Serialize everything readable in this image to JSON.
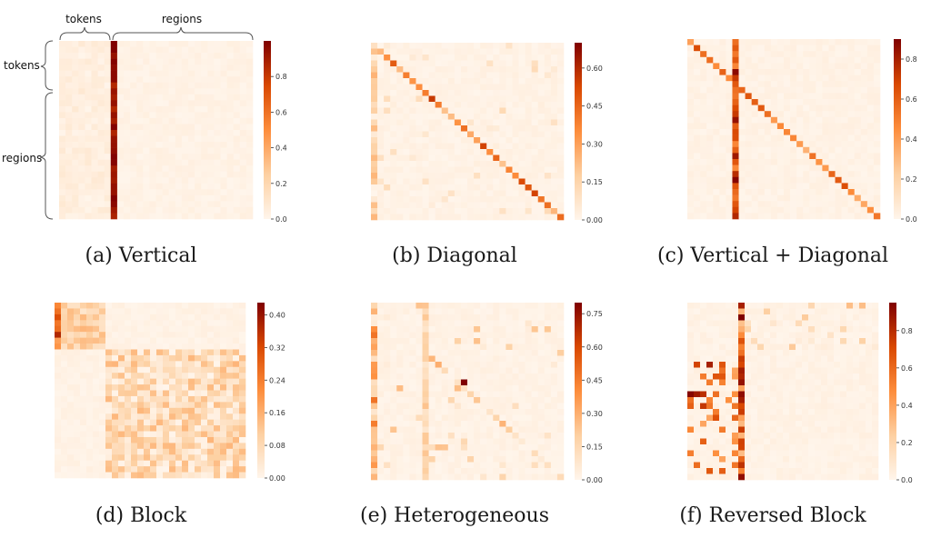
{
  "annotations": {
    "top_tokens": "tokens",
    "top_regions": "regions",
    "left_tokens": "tokens",
    "left_regions": "regions"
  },
  "colors": {
    "low": "#fff5eb",
    "mid": "#fdae6b",
    "high": "#7f0000"
  },
  "chart_data": [
    {
      "type": "heatmap",
      "title": "(a) Vertical",
      "pattern": "vertical",
      "colorbar_ticks": [
        "0.0",
        "0.2",
        "0.4",
        "0.6",
        "0.8"
      ],
      "vmin": 0,
      "vmax": 1.0
    },
    {
      "type": "heatmap",
      "title": "(b) Diagonal",
      "pattern": "diagonal",
      "colorbar_ticks": [
        "0.00",
        "0.15",
        "0.30",
        "0.45",
        "0.60"
      ],
      "vmin": 0,
      "vmax": 0.7
    },
    {
      "type": "heatmap",
      "title": "(c) Vertical + Diagonal",
      "pattern": "vertical-diagonal",
      "colorbar_ticks": [
        "0.0",
        "0.2",
        "0.4",
        "0.6",
        "0.8"
      ],
      "vmin": 0,
      "vmax": 0.9
    },
    {
      "type": "heatmap",
      "title": "(d) Block",
      "pattern": "block",
      "colorbar_ticks": [
        "0.00",
        "0.08",
        "0.16",
        "0.24",
        "0.32",
        "0.40"
      ],
      "vmin": 0,
      "vmax": 0.43
    },
    {
      "type": "heatmap",
      "title": "(e) Heterogeneous",
      "pattern": "heterogeneous",
      "colorbar_ticks": [
        "0.00",
        "0.15",
        "0.30",
        "0.45",
        "0.60",
        "0.75"
      ],
      "vmin": 0,
      "vmax": 0.8
    },
    {
      "type": "heatmap",
      "title": "(f) Reversed Block",
      "pattern": "reversed-block",
      "colorbar_ticks": [
        "0.0",
        "0.2",
        "0.4",
        "0.6",
        "0.8"
      ],
      "vmin": 0,
      "vmax": 0.95
    }
  ]
}
